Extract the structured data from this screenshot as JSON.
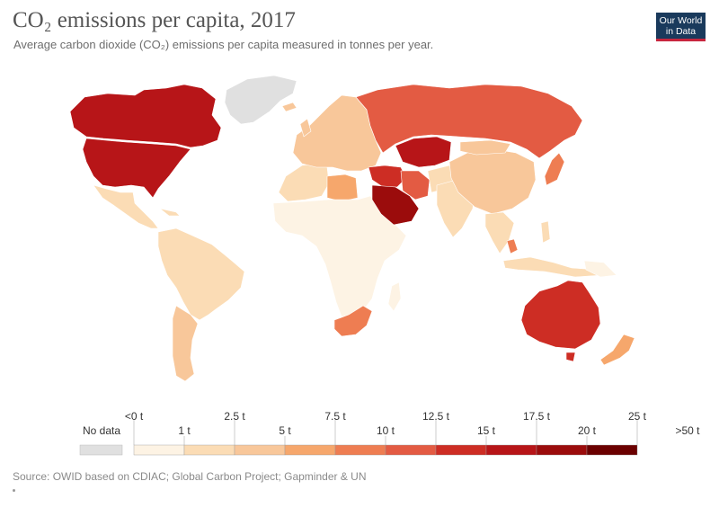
{
  "header": {
    "title": "CO₂ emissions per capita, 2017",
    "subtitle": "Average carbon dioxide (CO₂) emissions per capita measured in tonnes per year.",
    "logo_line1": "Our World",
    "logo_line2": "in Data"
  },
  "legend": {
    "no_data_label": "No data",
    "no_data_color": "#e0e0e0",
    "upper_labels": [
      "<0 t",
      "2.5 t",
      "7.5 t",
      "12.5 t",
      "17.5 t",
      "25 t"
    ],
    "lower_labels": [
      "1 t",
      "5 t",
      "10 t",
      "15 t",
      "20 t",
      ">50 t"
    ],
    "bins": [
      "#fdf3e4",
      "#fbdcb5",
      "#f8c79a",
      "#f6a76c",
      "#ee7d52",
      "#e35b43",
      "#cd2d24",
      "#b71518",
      "#9b0c0c",
      "#6b0000"
    ]
  },
  "map": {
    "colors": {
      "north_america": "#b71518",
      "greenland": "#e0e0e0",
      "mexico": "#fbdcb5",
      "south_america": "#fbdcb5",
      "argentina": "#f8c79a",
      "africa": "#fdf3e4",
      "libya": "#f6a76c",
      "algeria": "#fbdcb5",
      "south_africa": "#ee7d52",
      "europe": "#f8c79a",
      "russia": "#e35b43",
      "kazakhstan": "#b71518",
      "middle_east": "#cd2d24",
      "saudi": "#9b0c0c",
      "iran": "#e35b43",
      "china": "#f8c79a",
      "india": "#fbdcb5",
      "japan": "#ee7d52",
      "se_asia": "#fbdcb5",
      "australia": "#cd2d24",
      "new_zealand": "#f6a76c"
    }
  },
  "footer": {
    "source": "Source: OWID based on CDIAC; Global Carbon Project; Gapminder & UN"
  }
}
